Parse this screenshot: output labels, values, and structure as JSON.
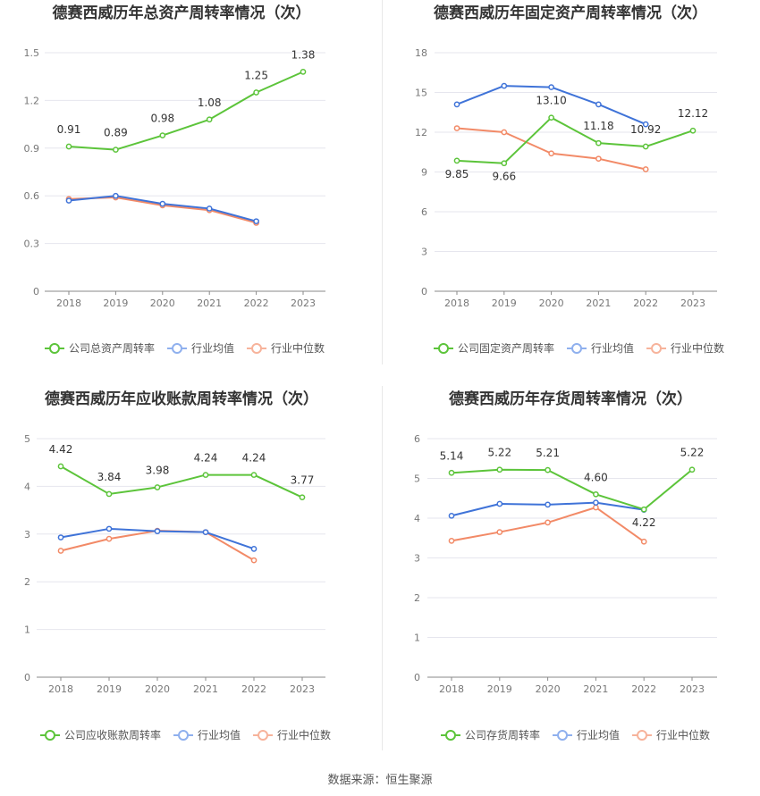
{
  "source_text": "数据来源：恒生聚源",
  "colors": {
    "company": "#5cc43a",
    "avg": "#3f73d8",
    "median": "#f28a67",
    "legend_avg": "#8fb0ee",
    "legend_median": "#f7b39b"
  },
  "chart_data": [
    {
      "type": "line",
      "title": "德赛西威历年总资产周转率情况（次）",
      "categories": [
        "2018",
        "2019",
        "2020",
        "2021",
        "2022",
        "2023"
      ],
      "ylim": [
        0,
        1.5
      ],
      "yticks": [
        "0",
        "0.3",
        "0.6",
        "0.9",
        "1.2",
        "1.5"
      ],
      "ytick_values": [
        0,
        0.3,
        0.6,
        0.9,
        1.2,
        1.5
      ],
      "grid": true,
      "legend_position": "bottom",
      "series": [
        {
          "name": "公司总资产周转率",
          "values": [
            0.91,
            0.89,
            0.98,
            1.08,
            1.25,
            1.38
          ],
          "labels": [
            "0.91",
            "0.89",
            "0.98",
            "1.08",
            "1.25",
            "1.38"
          ]
        },
        {
          "name": "行业均值",
          "values": [
            0.57,
            0.6,
            0.55,
            0.52,
            0.44,
            null
          ]
        },
        {
          "name": "行业中位数",
          "values": [
            0.58,
            0.59,
            0.54,
            0.51,
            0.43,
            null
          ]
        }
      ]
    },
    {
      "type": "line",
      "title": "德赛西威历年固定资产周转率情况（次）",
      "categories": [
        "2018",
        "2019",
        "2020",
        "2021",
        "2022",
        "2023"
      ],
      "ylim": [
        0,
        18
      ],
      "yticks": [
        "0",
        "3",
        "6",
        "9",
        "12",
        "15",
        "18"
      ],
      "ytick_values": [
        0,
        3,
        6,
        9,
        12,
        15,
        18
      ],
      "grid": true,
      "legend_position": "bottom",
      "series": [
        {
          "name": "公司固定资产周转率",
          "values": [
            9.85,
            9.66,
            13.1,
            11.18,
            10.92,
            12.12
          ],
          "labels": [
            "9.85",
            "9.66",
            "13.10",
            "11.18",
            "10.92",
            "12.12"
          ]
        },
        {
          "name": "行业均值",
          "values": [
            14.1,
            15.5,
            15.4,
            14.1,
            12.6,
            null
          ]
        },
        {
          "name": "行业中位数",
          "values": [
            12.3,
            12.0,
            10.4,
            10.0,
            9.2,
            null
          ]
        }
      ]
    },
    {
      "type": "line",
      "title": "德赛西威历年应收账款周转率情况（次）",
      "categories": [
        "2018",
        "2019",
        "2020",
        "2021",
        "2022",
        "2023"
      ],
      "ylim": [
        0,
        5
      ],
      "yticks": [
        "0",
        "1",
        "2",
        "3",
        "4",
        "5"
      ],
      "ytick_values": [
        0,
        1,
        2,
        3,
        4,
        5
      ],
      "grid": true,
      "legend_position": "bottom",
      "series": [
        {
          "name": "公司应收账款周转率",
          "values": [
            4.42,
            3.84,
            3.98,
            4.24,
            4.24,
            3.77
          ],
          "labels": [
            "4.42",
            "3.84",
            "3.98",
            "4.24",
            "4.24",
            "3.77"
          ]
        },
        {
          "name": "行业均值",
          "values": [
            2.93,
            3.11,
            3.06,
            3.04,
            2.69,
            null
          ]
        },
        {
          "name": "行业中位数",
          "values": [
            2.65,
            2.9,
            3.07,
            3.04,
            2.45,
            null
          ]
        }
      ]
    },
    {
      "type": "line",
      "title": "德赛西威历年存货周转率情况（次）",
      "categories": [
        "2018",
        "2019",
        "2020",
        "2021",
        "2022",
        "2023"
      ],
      "ylim": [
        0,
        6
      ],
      "yticks": [
        "0",
        "1",
        "2",
        "3",
        "4",
        "5",
        "6"
      ],
      "ytick_values": [
        0,
        1,
        2,
        3,
        4,
        5,
        6
      ],
      "grid": true,
      "legend_position": "bottom",
      "series": [
        {
          "name": "公司存货周转率",
          "values": [
            5.14,
            5.22,
            5.21,
            4.6,
            4.22,
            5.22
          ],
          "labels": [
            "5.14",
            "5.22",
            "5.21",
            "4.60",
            "4.22",
            "5.22"
          ]
        },
        {
          "name": "行业均值",
          "values": [
            4.06,
            4.36,
            4.34,
            4.39,
            4.21,
            null
          ]
        },
        {
          "name": "行业中位数",
          "values": [
            3.43,
            3.65,
            3.89,
            4.27,
            3.41,
            null
          ]
        }
      ]
    }
  ]
}
